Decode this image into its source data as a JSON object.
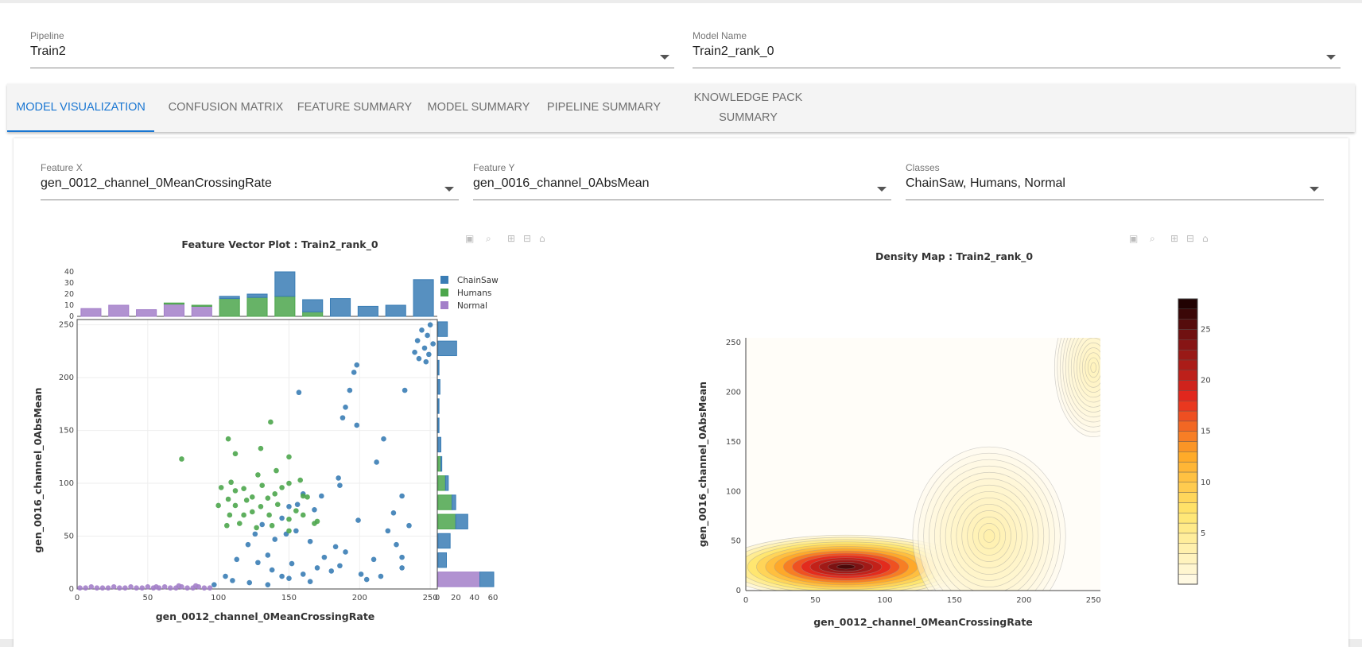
{
  "top": {
    "pipeline": {
      "label": "Pipeline",
      "value": "Train2"
    },
    "model": {
      "label": "Model Name",
      "value": "Train2_rank_0"
    }
  },
  "tabs": [
    {
      "label": "MODEL VISUALIZATION"
    },
    {
      "label": "CONFUSION MATRIX"
    },
    {
      "label": "FEATURE SUMMARY"
    },
    {
      "label": "MODEL SUMMARY"
    },
    {
      "label": "PIPELINE SUMMARY"
    },
    {
      "label": "KNOWLEDGE PACK SUMMARY"
    }
  ],
  "controls": {
    "feature_x": {
      "label": "Feature X",
      "value": "gen_0012_channel_0MeanCrossingRate"
    },
    "feature_y": {
      "label": "Feature Y",
      "value": "gen_0016_channel_0AbsMean"
    },
    "classes": {
      "label": "Classes",
      "value": "ChainSaw, Humans, Normal"
    }
  },
  "icons": [
    "camera-icon",
    "zoom-icon",
    "zoom-in-icon",
    "zoom-out-icon",
    "home-icon"
  ],
  "colors": {
    "chainsaw": "#3a7db5",
    "humans": "#4ca64c",
    "normal": "#a37fc9",
    "accent": "#1976d2"
  },
  "chart_data": [
    {
      "type": "scatter",
      "title": "Feature Vector Plot : Train2_rank_0",
      "xlabel": "gen_0012_channel_0MeanCrossingRate",
      "ylabel": "gen_0016_channel_0AbsMean",
      "xlim": [
        0,
        255
      ],
      "ylim": [
        0,
        255
      ],
      "xticks": [
        0,
        50,
        100,
        150,
        200,
        250
      ],
      "yticks": [
        0,
        50,
        100,
        150,
        200,
        250
      ],
      "grid": true,
      "legend_position": "top-right",
      "series": [
        {
          "name": "ChainSaw",
          "points": [
            [
              250,
              250
            ],
            [
              244,
              245
            ],
            [
              248,
              240
            ],
            [
              241,
              235
            ],
            [
              252,
              232
            ],
            [
              246,
              228
            ],
            [
              239,
              224
            ],
            [
              249,
              222
            ],
            [
              242,
              218
            ],
            [
              247,
              215
            ],
            [
              198,
              212
            ],
            [
              196,
              205
            ],
            [
              193,
              188
            ],
            [
              190,
              172
            ],
            [
              188,
              162
            ],
            [
              198,
              155
            ],
            [
              217,
              142
            ],
            [
              232,
              188
            ],
            [
              157,
              186
            ],
            [
              212,
              120
            ],
            [
              185,
              105
            ],
            [
              186,
              98
            ],
            [
              173,
              88
            ],
            [
              168,
              75
            ],
            [
              160,
              90
            ],
            [
              156,
              80
            ],
            [
              150,
              78
            ],
            [
              145,
              67
            ],
            [
              155,
              55
            ],
            [
              148,
              52
            ],
            [
              165,
              45
            ],
            [
              175,
              30
            ],
            [
              183,
              40
            ],
            [
              190,
              35
            ],
            [
              199,
              65
            ],
            [
              210,
              28
            ],
            [
              220,
              55
            ],
            [
              226,
              42
            ],
            [
              230,
              30
            ],
            [
              224,
              72
            ],
            [
              230,
              88
            ],
            [
              235,
              60
            ],
            [
              131,
              61
            ],
            [
              126,
              52
            ],
            [
              121,
              42
            ],
            [
              113,
              28
            ],
            [
              128,
              25
            ],
            [
              135,
              32
            ],
            [
              140,
              47
            ],
            [
              138,
              18
            ],
            [
              145,
              12
            ],
            [
              152,
              24
            ],
            [
              160,
              14
            ],
            [
              170,
              20
            ],
            [
              180,
              17
            ],
            [
              186,
              22
            ],
            [
              201,
              14
            ],
            [
              215,
              12
            ],
            [
              230,
              20
            ],
            [
              205,
              9
            ],
            [
              110,
              8
            ],
            [
              105,
              12
            ],
            [
              97,
              4
            ],
            [
              122,
              6
            ],
            [
              135,
              4
            ],
            [
              150,
              10
            ],
            [
              165,
              7
            ]
          ]
        },
        {
          "name": "Humans",
          "points": [
            [
              74,
              123
            ],
            [
              107,
              142
            ],
            [
              137,
              158
            ],
            [
              130,
              133
            ],
            [
              112,
              128
            ],
            [
              150,
              125
            ],
            [
              141,
              112
            ],
            [
              128,
              108
            ],
            [
              109,
              101
            ],
            [
              102,
              96
            ],
            [
              107,
              85
            ],
            [
              120,
              84
            ],
            [
              135,
              86
            ],
            [
              145,
              96
            ],
            [
              158,
              103
            ],
            [
              163,
              87
            ],
            [
              112,
              79
            ],
            [
              124,
              73
            ],
            [
              136,
              70
            ],
            [
              108,
              70
            ],
            [
              115,
              62
            ],
            [
              127,
              58
            ],
            [
              138,
              60
            ],
            [
              150,
              55
            ],
            [
              168,
              62
            ],
            [
              100,
              79
            ],
            [
              112,
              93
            ],
            [
              131,
              98
            ],
            [
              142,
              80
            ],
            [
              155,
              74
            ],
            [
              150,
              66
            ],
            [
              160,
              88
            ],
            [
              118,
              95
            ],
            [
              124,
              87
            ],
            [
              140,
              90
            ],
            [
              150,
              100
            ],
            [
              130,
              78
            ],
            [
              118,
              70
            ],
            [
              106,
              60
            ],
            [
              160,
              70
            ],
            [
              170,
              64
            ]
          ]
        },
        {
          "name": "Normal",
          "points": [
            [
              2,
              1
            ],
            [
              6,
              1
            ],
            [
              10,
              2
            ],
            [
              14,
              1
            ],
            [
              18,
              1
            ],
            [
              22,
              1
            ],
            [
              26,
              2
            ],
            [
              30,
              1
            ],
            [
              34,
              1
            ],
            [
              38,
              2
            ],
            [
              42,
              1
            ],
            [
              46,
              1
            ],
            [
              50,
              2
            ],
            [
              54,
              1
            ],
            [
              58,
              1
            ],
            [
              62,
              2
            ],
            [
              66,
              1
            ],
            [
              70,
              1
            ],
            [
              74,
              2
            ],
            [
              78,
              1
            ],
            [
              82,
              1
            ],
            [
              86,
              2
            ],
            [
              90,
              1
            ],
            [
              94,
              1
            ],
            [
              72,
              3
            ],
            [
              56,
              2
            ],
            [
              84,
              3
            ]
          ]
        }
      ],
      "top_histogram": {
        "yticks": [
          0,
          10,
          20,
          30,
          40
        ],
        "bins": [
          {
            "chainsaw": 0,
            "humans": 0,
            "normal": 7
          },
          {
            "chainsaw": 0,
            "humans": 0,
            "normal": 10
          },
          {
            "chainsaw": 0,
            "humans": 0,
            "normal": 6
          },
          {
            "chainsaw": 0,
            "humans": 1,
            "normal": 11
          },
          {
            "chainsaw": 0,
            "humans": 1,
            "normal": 9
          },
          {
            "chainsaw": 2,
            "humans": 16,
            "normal": 0
          },
          {
            "chainsaw": 3,
            "humans": 17,
            "normal": 0
          },
          {
            "chainsaw": 22,
            "humans": 18,
            "normal": 0
          },
          {
            "chainsaw": 11,
            "humans": 4,
            "normal": 0
          },
          {
            "chainsaw": 16,
            "humans": 0,
            "normal": 0
          },
          {
            "chainsaw": 9,
            "humans": 0,
            "normal": 0
          },
          {
            "chainsaw": 10,
            "humans": 0,
            "normal": 0
          },
          {
            "chainsaw": 33,
            "humans": 0,
            "normal": 0
          }
        ]
      },
      "right_histogram": {
        "xticks": [
          0,
          20,
          40,
          60
        ],
        "bins": [
          {
            "chainsaw": 15,
            "humans": 0,
            "normal": 45
          },
          {
            "chainsaw": 9,
            "humans": 0,
            "normal": 0
          },
          {
            "chainsaw": 13,
            "humans": 0,
            "normal": 0
          },
          {
            "chainsaw": 13,
            "humans": 19,
            "normal": 0
          },
          {
            "chainsaw": 4,
            "humans": 15,
            "normal": 0
          },
          {
            "chainsaw": 3,
            "humans": 8,
            "normal": 0
          },
          {
            "chainsaw": 1,
            "humans": 3,
            "normal": 0
          },
          {
            "chainsaw": 3,
            "humans": 0,
            "normal": 0
          },
          {
            "chainsaw": 1,
            "humans": 0,
            "normal": 0
          },
          {
            "chainsaw": 1,
            "humans": 0,
            "normal": 0
          },
          {
            "chainsaw": 2,
            "humans": 0,
            "normal": 0
          },
          {
            "chainsaw": 1,
            "humans": 0,
            "normal": 0
          },
          {
            "chainsaw": 20,
            "humans": 0,
            "normal": 0
          },
          {
            "chainsaw": 10,
            "humans": 0,
            "normal": 0
          }
        ]
      }
    },
    {
      "type": "heatmap",
      "title": "Density Map : Train2_rank_0",
      "xlabel": "gen_0012_channel_0MeanCrossingRate",
      "ylabel": "gen_0016_channel_0AbsMean",
      "xlim": [
        0,
        255
      ],
      "ylim": [
        0,
        255
      ],
      "xticks": [
        0,
        50,
        100,
        150,
        200,
        250
      ],
      "yticks": [
        0,
        50,
        100,
        150,
        200,
        250
      ],
      "colorbar": {
        "ticks": [
          5,
          10,
          15,
          20,
          25
        ],
        "range": [
          0,
          28
        ]
      },
      "peaks": [
        {
          "x": 72,
          "y": 24,
          "peak": 28
        },
        {
          "x": 175,
          "y": 55,
          "peak": 4
        },
        {
          "x": 250,
          "y": 225,
          "peak": 3
        }
      ]
    }
  ]
}
